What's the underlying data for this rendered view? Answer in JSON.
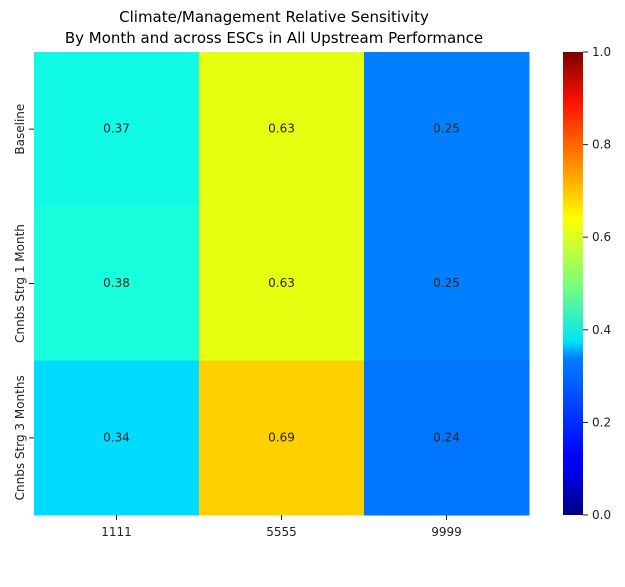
{
  "chart_data": {
    "type": "heatmap",
    "title": "Climate/Management Relative Sensitivity",
    "subtitle": "By Month and across ESCs in All Upstream Performance",
    "xlabel": "",
    "ylabel": "",
    "x_categories": [
      "1111",
      "5555",
      "9999"
    ],
    "y_categories": [
      "Baseline",
      "Cnnbs Strg 1 Month",
      "Cnnbs Strg 3 Months"
    ],
    "values": [
      [
        0.37,
        0.63,
        0.25
      ],
      [
        0.38,
        0.63,
        0.25
      ],
      [
        0.34,
        0.69,
        0.24
      ]
    ],
    "value_labels": [
      [
        "0.37",
        "0.63",
        "0.25"
      ],
      [
        "0.38",
        "0.63",
        "0.25"
      ],
      [
        "0.34",
        "0.69",
        "0.24"
      ]
    ],
    "colormap": "jet",
    "vmin": 0.0,
    "vmax": 1.0,
    "colorbar_ticks": [
      "0.0",
      "0.2",
      "0.4",
      "0.6",
      "0.8",
      "1.0"
    ],
    "colorbar_tick_values": [
      0.0,
      0.2,
      0.4,
      0.6,
      0.8,
      1.0
    ]
  }
}
